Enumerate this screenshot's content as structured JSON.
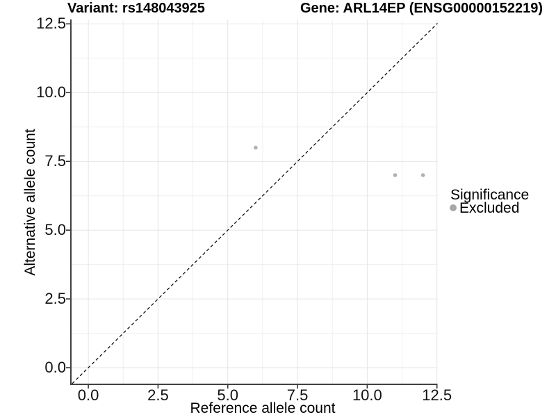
{
  "chart_data": {
    "type": "scatter",
    "title_left": "Variant: rs148043925",
    "title_right": "Gene: ARL14EP (ENSG00000152219)",
    "xlabel": "Reference allele count",
    "ylabel": "Alternative allele count",
    "xlim": [
      -0.6,
      12.52
    ],
    "ylim": [
      -0.58,
      12.66
    ],
    "x_ticks": {
      "values": [
        0,
        2.5,
        5,
        7.5,
        10,
        12.5
      ],
      "labels": [
        "0.0",
        "2.5",
        "5.0",
        "7.5",
        "10.0",
        "12.5"
      ]
    },
    "y_ticks": {
      "values": [
        0,
        2.5,
        5,
        7.5,
        10,
        12.5
      ],
      "labels": [
        "0.0",
        "2.5",
        "5.0",
        "7.5",
        "10.0",
        "12.5"
      ]
    },
    "minor_ticks": [
      1.25,
      3.75,
      6.25,
      8.75,
      11.25
    ],
    "grid": {
      "show": true,
      "major_color": "#e4e4e4",
      "minor_color": "#efefef"
    },
    "axis_line_color": "#404040",
    "tick_mark_color": "#333333",
    "identity_line": {
      "equation": "y = x",
      "style": "dashed",
      "color": "#000000"
    },
    "series": [
      {
        "name": "Excluded",
        "color": "#b1b1b1",
        "points": [
          [
            6,
            8
          ],
          [
            11,
            7
          ],
          [
            12,
            7
          ]
        ]
      }
    ],
    "legend": {
      "title": "Significance",
      "position": "right",
      "items": [
        {
          "label": "Excluded",
          "color": "#a8a8a8"
        }
      ]
    }
  }
}
